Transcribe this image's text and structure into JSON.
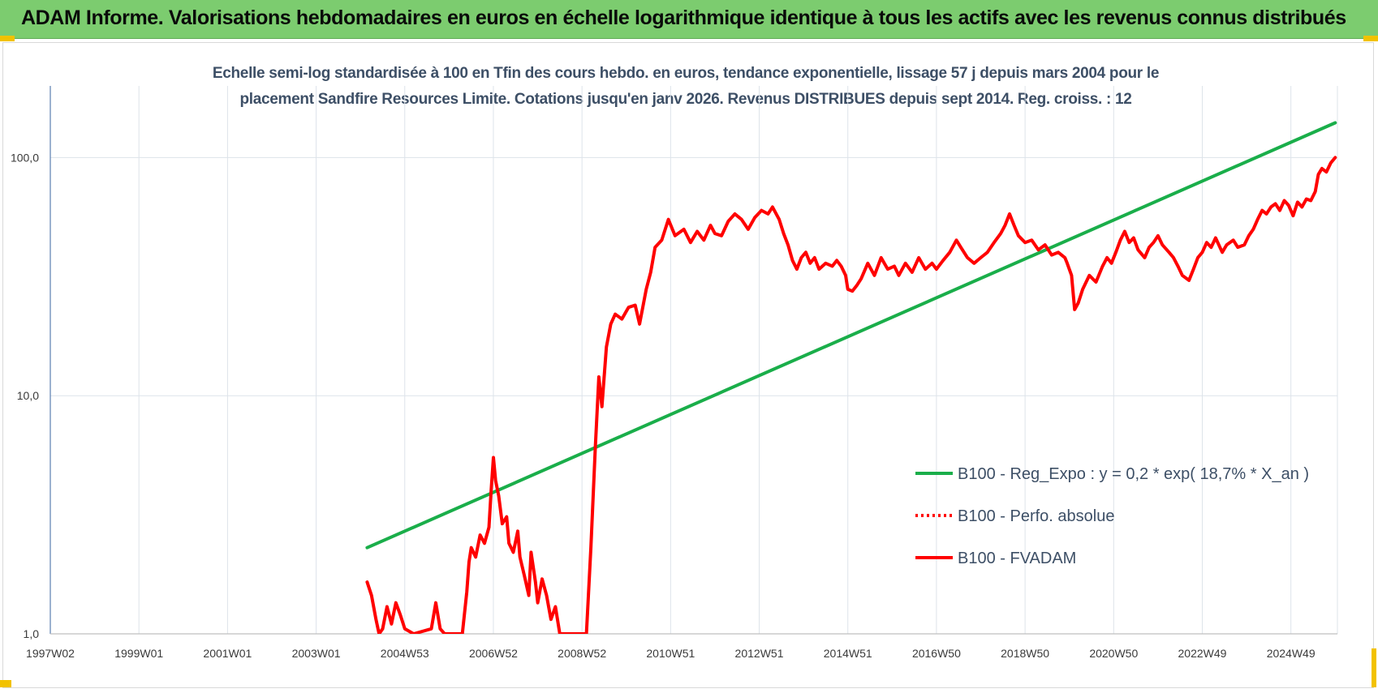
{
  "header": {
    "title": "ADAM Informe. Valorisations hebdomadaires en euros en échelle logarithmique identique à tous les actifs avec les revenus connus distribués"
  },
  "colors": {
    "banner": "#7ccc6f",
    "trend": "#1aae4a",
    "fvadam": "#ff0000",
    "grid": "#dde3ea",
    "corner": "#f2c200"
  },
  "chart_data": {
    "type": "line",
    "subtitle_line1": "Echelle semi-log standardisée à 100 en Tfin des cours hebdo. en euros, tendance exponentielle, lissage 57 j depuis mars 2004 pour le",
    "subtitle_line2": "placement Sandfire Resources Limite. Cotations jusqu'en janv 2026.  Revenus DISTRIBUES  depuis sept 2014.  Reg. croiss. : 12",
    "y_scale": "log",
    "ylim": [
      1,
      200
    ],
    "y_ticks": [
      {
        "value": 1,
        "label": "1,0"
      },
      {
        "value": 10,
        "label": "10,0"
      },
      {
        "value": 100,
        "label": "100,0"
      }
    ],
    "xlim": [
      1997.0,
      2026.05
    ],
    "x_ticks": [
      {
        "value": 1997.0,
        "label": "1997W02"
      },
      {
        "value": 1999.0,
        "label": "1999W01"
      },
      {
        "value": 2001.0,
        "label": "2001W01"
      },
      {
        "value": 2003.0,
        "label": "2003W01"
      },
      {
        "value": 2005.0,
        "label": "2004W53"
      },
      {
        "value": 2007.0,
        "label": "2006W52"
      },
      {
        "value": 2009.0,
        "label": "2008W52"
      },
      {
        "value": 2011.0,
        "label": "2010W51"
      },
      {
        "value": 2013.0,
        "label": "2012W51"
      },
      {
        "value": 2015.0,
        "label": "2014W51"
      },
      {
        "value": 2017.0,
        "label": "2016W50"
      },
      {
        "value": 2019.0,
        "label": "2018W50"
      },
      {
        "value": 2021.0,
        "label": "2020W50"
      },
      {
        "value": 2023.0,
        "label": "2022W49"
      },
      {
        "value": 2025.0,
        "label": "2024W49"
      }
    ],
    "legend_position": "right",
    "series": [
      {
        "name": "B100 - Reg_Expo : y = 0,2 * exp( 18,7% *  X_an )",
        "style": "solid",
        "color": "#1aae4a",
        "points": [
          [
            2004.15,
            2.3
          ],
          [
            2026.0,
            140
          ]
        ]
      },
      {
        "name": "B100 - Perfo. absolue",
        "style": "dotted",
        "color": "#ff0000",
        "points": []
      },
      {
        "name": "B100 - FVADAM",
        "style": "solid",
        "color": "#ff0000",
        "points": [
          [
            2004.15,
            1.65
          ],
          [
            2004.25,
            1.45
          ],
          [
            2004.35,
            1.15
          ],
          [
            2004.42,
            1.0
          ],
          [
            2004.5,
            1.05
          ],
          [
            2004.6,
            1.3
          ],
          [
            2004.7,
            1.1
          ],
          [
            2004.8,
            1.35
          ],
          [
            2004.9,
            1.2
          ],
          [
            2005.0,
            1.05
          ],
          [
            2005.2,
            1.0
          ],
          [
            2005.6,
            1.05
          ],
          [
            2005.7,
            1.35
          ],
          [
            2005.8,
            1.05
          ],
          [
            2005.9,
            1.0
          ],
          [
            2006.3,
            1.0
          ],
          [
            2006.4,
            1.5
          ],
          [
            2006.45,
            2.0
          ],
          [
            2006.5,
            2.3
          ],
          [
            2006.6,
            2.1
          ],
          [
            2006.7,
            2.6
          ],
          [
            2006.8,
            2.4
          ],
          [
            2006.9,
            2.8
          ],
          [
            2006.95,
            4.0
          ],
          [
            2007.0,
            5.5
          ],
          [
            2007.05,
            4.4
          ],
          [
            2007.12,
            3.8
          ],
          [
            2007.2,
            2.9
          ],
          [
            2007.3,
            3.1
          ],
          [
            2007.35,
            2.4
          ],
          [
            2007.45,
            2.2
          ],
          [
            2007.55,
            2.7
          ],
          [
            2007.6,
            2.1
          ],
          [
            2007.7,
            1.75
          ],
          [
            2007.8,
            1.45
          ],
          [
            2007.85,
            2.2
          ],
          [
            2007.95,
            1.65
          ],
          [
            2008.0,
            1.35
          ],
          [
            2008.1,
            1.7
          ],
          [
            2008.2,
            1.45
          ],
          [
            2008.3,
            1.15
          ],
          [
            2008.4,
            1.3
          ],
          [
            2008.5,
            1.0
          ],
          [
            2009.1,
            1.0
          ],
          [
            2009.2,
            2.3
          ],
          [
            2009.3,
            6.0
          ],
          [
            2009.38,
            12.0
          ],
          [
            2009.45,
            9.0
          ],
          [
            2009.55,
            16.0
          ],
          [
            2009.65,
            20.0
          ],
          [
            2009.75,
            22.0
          ],
          [
            2009.9,
            21.0
          ],
          [
            2010.05,
            23.5
          ],
          [
            2010.2,
            24.0
          ],
          [
            2010.3,
            20.0
          ],
          [
            2010.45,
            28.0
          ],
          [
            2010.55,
            33.0
          ],
          [
            2010.65,
            42.0
          ],
          [
            2010.8,
            45.0
          ],
          [
            2010.95,
            55.0
          ],
          [
            2011.1,
            47.0
          ],
          [
            2011.3,
            50.0
          ],
          [
            2011.45,
            44.0
          ],
          [
            2011.6,
            49.0
          ],
          [
            2011.75,
            45.0
          ],
          [
            2011.9,
            52.0
          ],
          [
            2012.0,
            48.0
          ],
          [
            2012.15,
            47.0
          ],
          [
            2012.3,
            54.0
          ],
          [
            2012.45,
            58.0
          ],
          [
            2012.6,
            55.0
          ],
          [
            2012.75,
            50.0
          ],
          [
            2012.9,
            56.0
          ],
          [
            2013.05,
            60.0
          ],
          [
            2013.2,
            58.0
          ],
          [
            2013.3,
            62.0
          ],
          [
            2013.45,
            55.0
          ],
          [
            2013.55,
            48.0
          ],
          [
            2013.65,
            43.0
          ],
          [
            2013.75,
            37.0
          ],
          [
            2013.85,
            34.0
          ],
          [
            2013.95,
            38.0
          ],
          [
            2014.05,
            40.0
          ],
          [
            2014.15,
            36.0
          ],
          [
            2014.25,
            38.0
          ],
          [
            2014.35,
            34.0
          ],
          [
            2014.5,
            36.0
          ],
          [
            2014.65,
            35.0
          ],
          [
            2014.75,
            37.0
          ],
          [
            2014.85,
            35.0
          ],
          [
            2014.95,
            32.0
          ],
          [
            2015.0,
            28.0
          ],
          [
            2015.1,
            27.5
          ],
          [
            2015.2,
            29.0
          ],
          [
            2015.3,
            31.0
          ],
          [
            2015.45,
            36.0
          ],
          [
            2015.6,
            32.0
          ],
          [
            2015.75,
            38.0
          ],
          [
            2015.9,
            34.0
          ],
          [
            2016.05,
            35.0
          ],
          [
            2016.15,
            32.0
          ],
          [
            2016.3,
            36.0
          ],
          [
            2016.45,
            33.0
          ],
          [
            2016.6,
            38.0
          ],
          [
            2016.75,
            34.0
          ],
          [
            2016.9,
            36.0
          ],
          [
            2017.0,
            34.0
          ],
          [
            2017.15,
            37.0
          ],
          [
            2017.3,
            40.0
          ],
          [
            2017.45,
            45.0
          ],
          [
            2017.55,
            42.0
          ],
          [
            2017.7,
            38.0
          ],
          [
            2017.85,
            36.0
          ],
          [
            2018.0,
            38.0
          ],
          [
            2018.15,
            40.0
          ],
          [
            2018.3,
            44.0
          ],
          [
            2018.45,
            48.0
          ],
          [
            2018.55,
            52.0
          ],
          [
            2018.65,
            58.0
          ],
          [
            2018.75,
            52.0
          ],
          [
            2018.85,
            47.0
          ],
          [
            2019.0,
            44.0
          ],
          [
            2019.15,
            45.0
          ],
          [
            2019.3,
            41.0
          ],
          [
            2019.45,
            43.0
          ],
          [
            2019.6,
            39.0
          ],
          [
            2019.75,
            40.0
          ],
          [
            2019.9,
            38.0
          ],
          [
            2019.95,
            36.0
          ],
          [
            2020.05,
            32.0
          ],
          [
            2020.12,
            23.0
          ],
          [
            2020.2,
            24.5
          ],
          [
            2020.3,
            28.0
          ],
          [
            2020.45,
            32.0
          ],
          [
            2020.6,
            30.0
          ],
          [
            2020.75,
            35.0
          ],
          [
            2020.85,
            38.0
          ],
          [
            2020.95,
            36.0
          ],
          [
            2021.05,
            40.0
          ],
          [
            2021.15,
            45.0
          ],
          [
            2021.25,
            49.0
          ],
          [
            2021.35,
            44.0
          ],
          [
            2021.45,
            46.0
          ],
          [
            2021.55,
            41.0
          ],
          [
            2021.7,
            38.0
          ],
          [
            2021.8,
            42.0
          ],
          [
            2021.9,
            44.0
          ],
          [
            2022.0,
            47.0
          ],
          [
            2022.1,
            43.0
          ],
          [
            2022.25,
            40.0
          ],
          [
            2022.35,
            38.0
          ],
          [
            2022.45,
            35.0
          ],
          [
            2022.55,
            32.0
          ],
          [
            2022.7,
            30.5
          ],
          [
            2022.8,
            34.0
          ],
          [
            2022.9,
            38.0
          ],
          [
            2023.0,
            40.0
          ],
          [
            2023.1,
            44.0
          ],
          [
            2023.2,
            42.0
          ],
          [
            2023.3,
            46.0
          ],
          [
            2023.45,
            40.0
          ],
          [
            2023.55,
            43.0
          ],
          [
            2023.7,
            45.0
          ],
          [
            2023.8,
            42.0
          ],
          [
            2023.95,
            43.0
          ],
          [
            2024.05,
            47.0
          ],
          [
            2024.15,
            50.0
          ],
          [
            2024.25,
            55.0
          ],
          [
            2024.35,
            60.0
          ],
          [
            2024.45,
            58.0
          ],
          [
            2024.55,
            62.0
          ],
          [
            2024.65,
            64.0
          ],
          [
            2024.75,
            60.0
          ],
          [
            2024.85,
            66.0
          ],
          [
            2024.95,
            63.0
          ],
          [
            2025.05,
            57.0
          ],
          [
            2025.15,
            65.0
          ],
          [
            2025.25,
            62.0
          ],
          [
            2025.35,
            67.0
          ],
          [
            2025.45,
            66.0
          ],
          [
            2025.55,
            72.0
          ],
          [
            2025.62,
            85.0
          ],
          [
            2025.7,
            90.0
          ],
          [
            2025.8,
            87.0
          ],
          [
            2025.9,
            95.0
          ],
          [
            2026.0,
            100.0
          ]
        ]
      }
    ]
  }
}
